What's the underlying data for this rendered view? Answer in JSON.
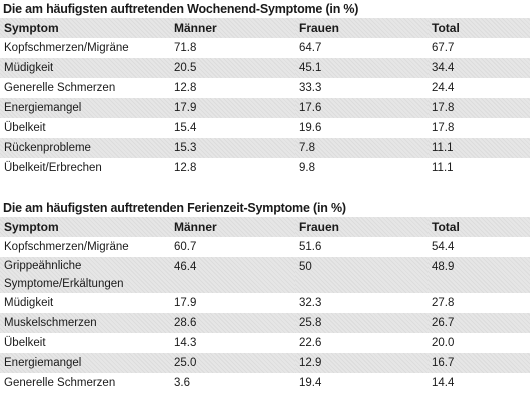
{
  "table1": {
    "title": "Die am häufigsten auftretenden Wochenend-Symptome (in %)",
    "headers": [
      "Symptom",
      "Männer",
      "Frauen",
      "Total"
    ],
    "rows": [
      [
        "Kopfschmerzen/Migräne",
        "71.8",
        "64.7",
        "67.7"
      ],
      [
        "Müdigkeit",
        "20.5",
        "45.1",
        "34.4"
      ],
      [
        "Generelle Schmerzen",
        "12.8",
        "33.3",
        "24.4"
      ],
      [
        "Energiemangel",
        "17.9",
        "17.6",
        "17.8"
      ],
      [
        "Übelkeit",
        "15.4",
        "19.6",
        "17.8"
      ],
      [
        "Rückenprobleme",
        "15.3",
        "7.8",
        "11.1"
      ],
      [
        "Übelkeit/Erbrechen",
        "12.8",
        "9.8",
        "11.1"
      ]
    ]
  },
  "table2": {
    "title": "Die am häufigsten auftretenden Ferienzeit-Symptome (in %)",
    "headers": [
      "Symptom",
      "Männer",
      "Frauen",
      "Total"
    ],
    "rows": [
      [
        "Kopfschmerzen/Migräne",
        "60.7",
        "51.6",
        "54.4"
      ],
      [
        "Grippeähnliche Symptome/Erkältungen",
        "46.4",
        "50",
        "48.9"
      ],
      [
        "Müdigkeit",
        "17.9",
        "32.3",
        "27.8"
      ],
      [
        "Muskelschmerzen",
        "28.6",
        "25.8",
        "26.7"
      ],
      [
        "Übelkeit",
        "14.3",
        "22.6",
        "20.0"
      ],
      [
        "Energiemangel",
        "25.0",
        "12.9",
        "16.7"
      ],
      [
        "Generelle Schmerzen",
        "3.6",
        "19.4",
        "14.4"
      ]
    ]
  }
}
